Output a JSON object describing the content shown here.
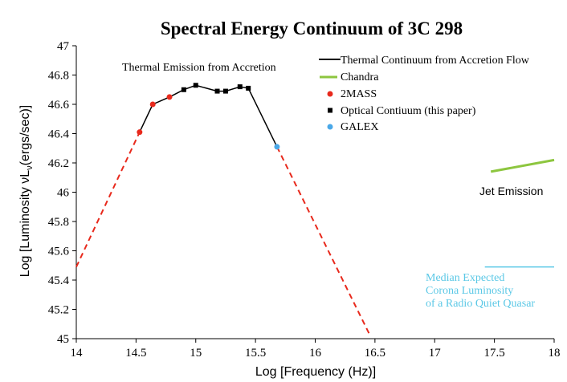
{
  "chart_data": {
    "type": "line",
    "title": "Spectral Energy Continuum of 3C 298",
    "xlabel": "Log [Frequency (Hz)]",
    "ylabel_prefix": "Log [Luminosity νL",
    "ylabel_sub": "ν",
    "ylabel_suffix": "(ergs/sec)]",
    "xlim": [
      14,
      18
    ],
    "ylim": [
      45,
      47
    ],
    "xticks": [
      14,
      14.5,
      15,
      15.5,
      16,
      16.5,
      17,
      17.5,
      18
    ],
    "xtick_labels": [
      "14",
      "14.5",
      "15",
      "15.5",
      "16",
      "16.5",
      "17",
      "17.5",
      "18"
    ],
    "yticks": [
      45,
      45.2,
      45.4,
      45.6,
      45.8,
      46,
      46.2,
      46.4,
      46.6,
      46.8,
      47
    ],
    "ytick_labels": [
      "45",
      "45.2",
      "45.4",
      "45.6",
      "45.8",
      "46",
      "46.2",
      "46.4",
      "46.6",
      "46.8",
      "47"
    ],
    "colors": {
      "continuum": "#000000",
      "extrapolation": "#e8291c",
      "chandra": "#8dc63f",
      "twomass": "#e8291c",
      "optical": "#000000",
      "galex": "#4aa8e8",
      "corona": "#5bc8e6"
    },
    "series": [
      {
        "name": "Thermal Continuum from Accretion Flow",
        "style": "solid-black",
        "x": [
          14.53,
          14.64,
          14.78,
          14.9,
          15.0,
          15.18,
          15.25,
          15.37,
          15.44,
          15.68
        ],
        "y": [
          46.41,
          46.6,
          46.65,
          46.7,
          46.73,
          46.69,
          46.69,
          46.72,
          46.71,
          46.31
        ]
      },
      {
        "name": "Extrapolation (low frequency)",
        "style": "dashed-red",
        "x": [
          14.0,
          14.53
        ],
        "y": [
          45.49,
          46.41
        ]
      },
      {
        "name": "Extrapolation (high frequency)",
        "style": "dashed-red",
        "x": [
          15.68,
          16.46
        ],
        "y": [
          46.31,
          45.02
        ]
      },
      {
        "name": "Chandra",
        "style": "solid-green",
        "x": [
          17.47,
          18.0
        ],
        "y": [
          46.14,
          46.22
        ]
      },
      {
        "name": "Median Expected Corona Luminosity",
        "style": "solid-cyan",
        "x": [
          17.42,
          18.0
        ],
        "y": [
          45.49,
          45.49
        ]
      },
      {
        "name": "2MASS",
        "style": "red-circle",
        "x": [
          14.53,
          14.64,
          14.78
        ],
        "y": [
          46.41,
          46.6,
          46.65
        ]
      },
      {
        "name": "Optical Contiuum (this paper)",
        "style": "black-square",
        "x": [
          14.9,
          15.0,
          15.18,
          15.25,
          15.37,
          15.44
        ],
        "y": [
          46.7,
          46.73,
          46.69,
          46.69,
          46.72,
          46.71
        ]
      },
      {
        "name": "GALEX",
        "style": "blue-circle",
        "x": [
          15.68
        ],
        "y": [
          46.31
        ]
      }
    ],
    "legend": {
      "position": "top-right",
      "entries": [
        {
          "label": "Thermal Continuum from Accretion Flow",
          "marker": "line-black"
        },
        {
          "label": "Chandra",
          "marker": "line-green"
        },
        {
          "label": "2MASS",
          "marker": "dot-red"
        },
        {
          "label": "Optical Contiuum (this paper)",
          "marker": "square-black"
        },
        {
          "label": "GALEX",
          "marker": "dot-blue"
        }
      ]
    },
    "annotations": {
      "thermal": "Thermal Emission from Accretion",
      "jet": "Jet Emission",
      "corona_lines": [
        "Median Expected",
        "Corona  Luminosity",
        "of a Radio Quiet Quasar"
      ]
    }
  }
}
